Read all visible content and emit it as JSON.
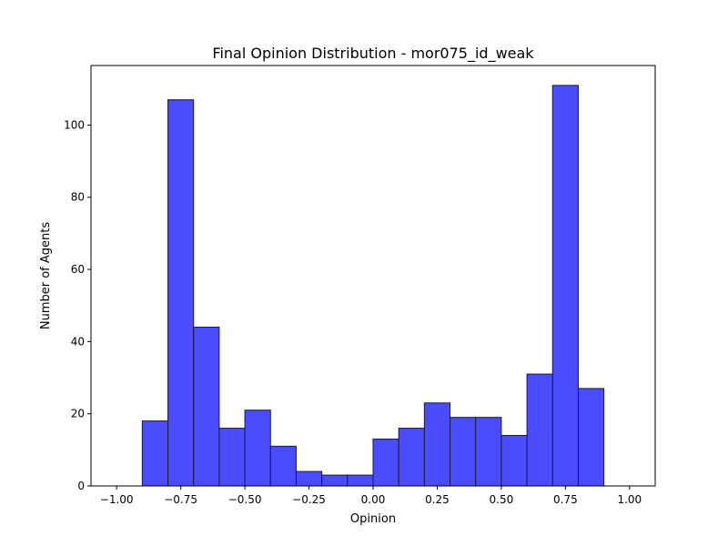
{
  "chart_data": {
    "type": "bar",
    "title": "Final Opinion Distribution - mor075_id_weak",
    "xlabel": "Opinion",
    "ylabel": "Number of Agents",
    "xlim": [
      -1.1,
      1.1
    ],
    "ylim": [
      0,
      116.5
    ],
    "bin_width": 0.1,
    "bins": [
      {
        "start": -0.9,
        "end": -0.8,
        "count": 18
      },
      {
        "start": -0.8,
        "end": -0.7,
        "count": 107
      },
      {
        "start": -0.7,
        "end": -0.6,
        "count": 44
      },
      {
        "start": -0.6,
        "end": -0.5,
        "count": 16
      },
      {
        "start": -0.5,
        "end": -0.4,
        "count": 21
      },
      {
        "start": -0.4,
        "end": -0.3,
        "count": 11
      },
      {
        "start": -0.3,
        "end": -0.2,
        "count": 4
      },
      {
        "start": -0.2,
        "end": -0.1,
        "count": 3
      },
      {
        "start": -0.1,
        "end": 0.0,
        "count": 3
      },
      {
        "start": 0.0,
        "end": 0.1,
        "count": 13
      },
      {
        "start": 0.1,
        "end": 0.2,
        "count": 16
      },
      {
        "start": 0.2,
        "end": 0.3,
        "count": 23
      },
      {
        "start": 0.3,
        "end": 0.4,
        "count": 19
      },
      {
        "start": 0.4,
        "end": 0.5,
        "count": 19
      },
      {
        "start": 0.5,
        "end": 0.6,
        "count": 14
      },
      {
        "start": 0.6,
        "end": 0.7,
        "count": 31
      },
      {
        "start": 0.7,
        "end": 0.8,
        "count": 111
      },
      {
        "start": 0.8,
        "end": 0.9,
        "count": 27
      }
    ],
    "x_ticks": [
      -1.0,
      -0.75,
      -0.5,
      -0.25,
      0.0,
      0.25,
      0.5,
      0.75,
      1.0
    ],
    "x_tick_labels": [
      "−1.00",
      "−0.75",
      "−0.50",
      "−0.25",
      "0.00",
      "0.25",
      "0.50",
      "0.75",
      "1.00"
    ],
    "y_ticks": [
      0,
      20,
      40,
      60,
      80,
      100
    ],
    "y_tick_labels": [
      "0",
      "20",
      "40",
      "60",
      "80",
      "100"
    ],
    "grid": false,
    "legend": "none",
    "colors": {
      "bar_fill": "#4b4bff",
      "bar_edge": "#1a1a3a",
      "axis": "#000000"
    }
  }
}
